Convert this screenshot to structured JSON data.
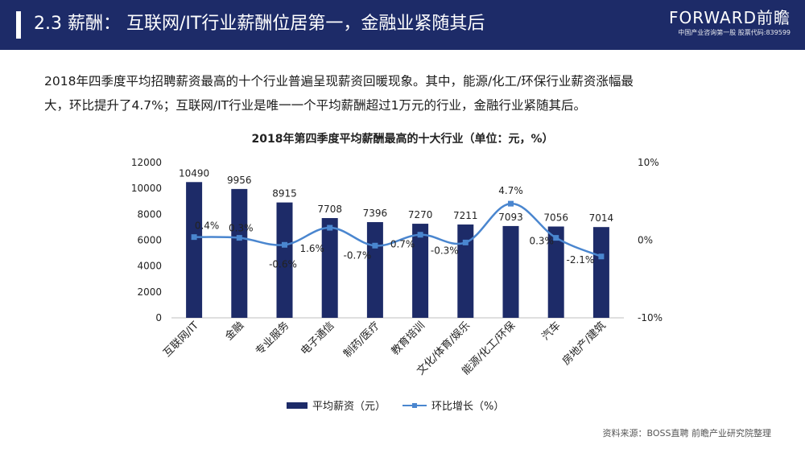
{
  "header": {
    "title": "2.3 薪酬： 互联网/IT行业薪酬位居第一，金融业紧随其后"
  },
  "logo": {
    "main": "FORWARD前瞻",
    "sub": "中国产业咨询第一股 股票代码:839599"
  },
  "intro": {
    "line1": "2018年四季度平均招聘薪资最高的十个行业普遍呈现薪资回暖现象。其中，能源/化工/环保行业薪资涨幅最",
    "line2": "大，环比提升了4.7%；互联网/IT行业是唯一一个平均薪酬超过1万元的行业，金融行业紧随其后。"
  },
  "chart_data": {
    "type": "bar",
    "title": "2018年第四季度平均薪酬最高的十大行业（单位：元，%）",
    "categories": [
      "互联网/IT",
      "金融",
      "专业服务",
      "电子通信",
      "制药/医疗",
      "教育培训",
      "文化/体育/娱乐",
      "能源/化工/环保",
      "汽车",
      "房地产/建筑"
    ],
    "series": [
      {
        "name": "平均薪资（元）",
        "type": "bar",
        "axis": "left",
        "values": [
          10490,
          9956,
          8915,
          7708,
          7396,
          7270,
          7211,
          7093,
          7056,
          7014
        ],
        "labels": [
          "10490",
          "9956",
          "8915",
          "7708",
          "7396",
          "7270",
          "7211",
          "7093",
          "7056",
          "7014"
        ]
      },
      {
        "name": "环比增长（%）",
        "type": "line",
        "axis": "right",
        "values": [
          0.4,
          0.3,
          -0.6,
          1.6,
          -0.7,
          0.7,
          -0.3,
          4.7,
          0.3,
          -2.1
        ],
        "labels": [
          "0.4%",
          "0.3%",
          "-0.6%",
          "1.6%",
          "-0.7%",
          "0.7%",
          "-0.3%",
          "4.7%",
          "0.3%",
          "-2.1%"
        ]
      }
    ],
    "ylim_left": [
      0,
      12000
    ],
    "yticks_left": [
      "12000",
      "10000",
      "8000",
      "6000",
      "4000",
      "2000",
      "0"
    ],
    "ylim_right": [
      -10,
      10
    ],
    "yticks_right": [
      "10%",
      "0%",
      "-10%"
    ],
    "grid": false,
    "legend": "bottom",
    "colors": {
      "bar": "#1d2b68",
      "line": "#4a86cf"
    }
  },
  "source": {
    "text": "资料来源：BOSS直聘 前瞻产业研究院整理"
  }
}
